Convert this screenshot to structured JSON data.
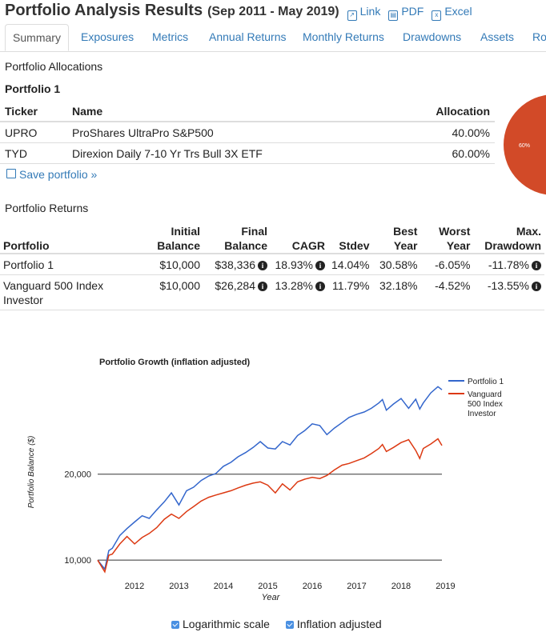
{
  "header": {
    "title": "Portfolio Analysis Results",
    "date_range": "(Sep 2011 - May 2019)",
    "links": [
      {
        "label": "Link",
        "icon": "external-link-icon"
      },
      {
        "label": "PDF",
        "icon": "pdf-file-icon"
      },
      {
        "label": "Excel",
        "icon": "excel-file-icon"
      }
    ]
  },
  "tabs": [
    "Summary",
    "Exposures",
    "Metrics",
    "Annual Returns",
    "Monthly Returns",
    "Drawdowns",
    "Assets",
    "Ro"
  ],
  "allocations": {
    "heading": "Portfolio Allocations",
    "portfolio_name": "Portfolio 1",
    "columns": [
      "Ticker",
      "Name",
      "Allocation"
    ],
    "rows": [
      {
        "ticker": "UPRO",
        "name": "ProShares UltraPro S&P500",
        "allocation": "40.00%"
      },
      {
        "ticker": "TYD",
        "name": "Direxion Daily 7-10 Yr Trs Bull 3X ETF",
        "allocation": "60.00%"
      }
    ],
    "save_label": "Save portfolio »",
    "pie_label": "60%",
    "pie_color": "#d24a28"
  },
  "returns": {
    "heading": "Portfolio Returns",
    "columns": {
      "portfolio": "Portfolio",
      "initial1": "Initial",
      "initial2": "Balance",
      "final1": "Final",
      "final2": "Balance",
      "cagr": "CAGR",
      "stdev": "Stdev",
      "best1": "Best",
      "best2": "Year",
      "worst1": "Worst",
      "worst2": "Year",
      "dd1": "Max.",
      "dd2": "Drawdown"
    },
    "rows": [
      {
        "portfolio": "Portfolio 1",
        "initial": "$10,000",
        "final": "$38,336",
        "cagr": "18.93%",
        "stdev": "14.04%",
        "best": "30.58%",
        "worst": "-6.05%",
        "drawdown": "-11.78%"
      },
      {
        "portfolio": "Vanguard 500 Index Investor",
        "initial": "$10,000",
        "final": "$26,284",
        "cagr": "13.28%",
        "stdev": "11.79%",
        "best": "32.18%",
        "worst": "-4.52%",
        "drawdown": "-13.55%"
      }
    ]
  },
  "chart_data": {
    "type": "line",
    "title": "Portfolio Growth (inflation adjusted)",
    "xlabel": "Year",
    "ylabel": "Portfolio Balance ($)",
    "log_scale": true,
    "x_ticks": [
      "2012",
      "2013",
      "2014",
      "2015",
      "2016",
      "2017",
      "2018",
      "2019"
    ],
    "y_ticks": [
      10000,
      20000
    ],
    "y_tick_labels": [
      "10,000",
      "20,000"
    ],
    "ylim": [
      8800,
      43000
    ],
    "xlim": [
      2011.67,
      2019.42
    ],
    "legend_position": "right",
    "series": [
      {
        "name": "Portfolio 1",
        "color": "#3366cc",
        "x": [
          2011.67,
          2011.83,
          2011.92,
          2012.0,
          2012.17,
          2012.33,
          2012.5,
          2012.67,
          2012.83,
          2013.0,
          2013.17,
          2013.33,
          2013.5,
          2013.67,
          2013.83,
          2014.0,
          2014.17,
          2014.33,
          2014.5,
          2014.67,
          2014.83,
          2015.0,
          2015.17,
          2015.33,
          2015.5,
          2015.67,
          2015.83,
          2016.0,
          2016.17,
          2016.33,
          2016.5,
          2016.67,
          2016.83,
          2017.0,
          2017.17,
          2017.33,
          2017.5,
          2017.67,
          2017.83,
          2018.0,
          2018.08,
          2018.17,
          2018.33,
          2018.5,
          2018.67,
          2018.83,
          2018.92,
          2019.0,
          2019.17,
          2019.33,
          2019.42
        ],
        "values": [
          10000,
          9300,
          10800,
          11000,
          12200,
          12900,
          13600,
          14300,
          14000,
          15000,
          16000,
          17200,
          15600,
          17500,
          18000,
          19000,
          19700,
          20100,
          21300,
          22000,
          23000,
          23800,
          24800,
          26000,
          24700,
          24500,
          26000,
          25300,
          27300,
          28400,
          30000,
          29600,
          27500,
          29000,
          30300,
          31600,
          32400,
          33000,
          34000,
          35500,
          36500,
          33500,
          35200,
          36800,
          34000,
          36600,
          33800,
          35500,
          38500,
          40500,
          39500
        ]
      },
      {
        "name": "Vanguard 500 Index Investor",
        "color": "#dc3912",
        "x": [
          2011.67,
          2011.83,
          2011.92,
          2012.0,
          2012.17,
          2012.33,
          2012.5,
          2012.67,
          2012.83,
          2013.0,
          2013.17,
          2013.33,
          2013.5,
          2013.67,
          2013.83,
          2014.0,
          2014.17,
          2014.33,
          2014.5,
          2014.67,
          2014.83,
          2015.0,
          2015.17,
          2015.33,
          2015.5,
          2015.67,
          2015.83,
          2016.0,
          2016.17,
          2016.33,
          2016.5,
          2016.67,
          2016.83,
          2017.0,
          2017.17,
          2017.33,
          2017.5,
          2017.67,
          2017.83,
          2018.0,
          2018.08,
          2018.17,
          2018.33,
          2018.5,
          2018.67,
          2018.83,
          2018.92,
          2019.0,
          2019.17,
          2019.33,
          2019.42
        ],
        "values": [
          10000,
          9100,
          10400,
          10500,
          11400,
          12100,
          11400,
          12000,
          12400,
          13000,
          13900,
          14500,
          14000,
          14800,
          15400,
          16100,
          16600,
          16900,
          17200,
          17500,
          17900,
          18300,
          18600,
          18800,
          18300,
          17200,
          18500,
          17600,
          18800,
          19200,
          19500,
          19300,
          19800,
          20700,
          21500,
          21800,
          22300,
          22800,
          23600,
          24600,
          25400,
          24000,
          24800,
          25800,
          26400,
          24200,
          22700,
          24600,
          25500,
          26600,
          25200
        ]
      }
    ]
  },
  "options": {
    "log_label": "Logarithmic scale",
    "inflation_label": "Inflation adjusted",
    "check_color": "#4a90e2"
  }
}
